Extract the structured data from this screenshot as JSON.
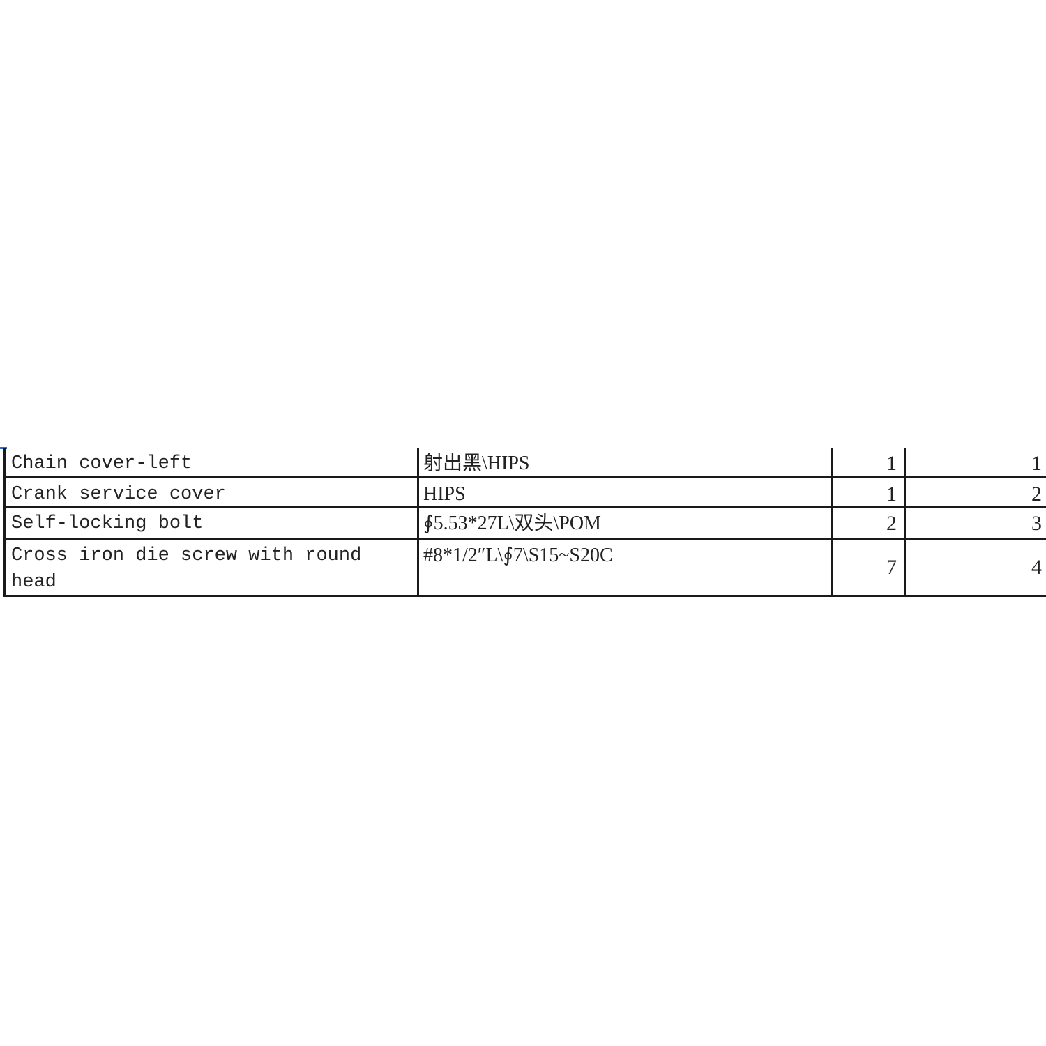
{
  "table": {
    "rows": [
      {
        "name": "Chain cover-left",
        "material": "射出黑\\HIPS",
        "qty": "1",
        "no": "1"
      },
      {
        "name": "Crank service cover",
        "material": "HIPS",
        "qty": "1",
        "no": "2"
      },
      {
        "name": "Self-locking bolt",
        "material": "∮5.53*27L\\双头\\POM",
        "qty": "2",
        "no": "3"
      },
      {
        "name": "Cross iron die screw with round head",
        "material": "#8*1/2″L\\∮7\\S15~S20C",
        "qty": "7",
        "no": "4"
      }
    ]
  }
}
